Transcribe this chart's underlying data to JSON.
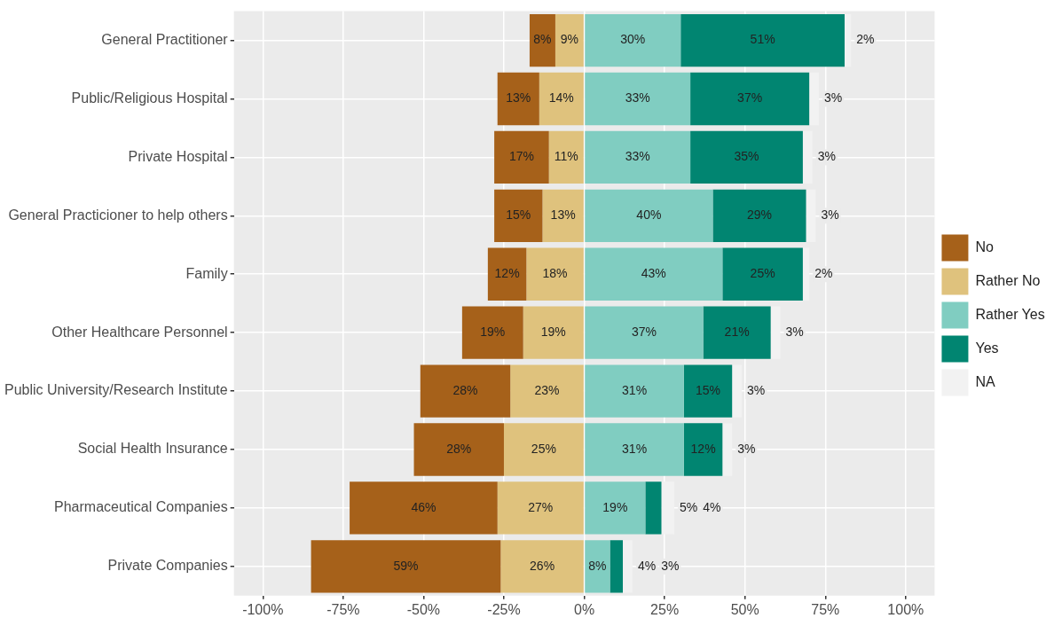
{
  "chart_data": {
    "type": "bar",
    "orientation": "horizontal",
    "categories": [
      "General Practitioner",
      "Public/Religious Hospital",
      "Private Hospital",
      "General Practicioner to help others",
      "Family",
      "Other Healthcare Personnel",
      "Public University/Research Institute",
      "Social Health Insurance",
      "Pharmaceutical Companies",
      "Private Companies"
    ],
    "series": [
      {
        "name": "No",
        "color": "#a6611a",
        "values": [
          8,
          13,
          17,
          15,
          12,
          19,
          28,
          28,
          46,
          59
        ],
        "base": [
          -17,
          -27,
          -28,
          -28,
          -30,
          -38,
          -51,
          -53,
          -73,
          -85
        ],
        "value_labels": [
          "8%",
          "13%",
          "17%",
          "15%",
          "12%",
          "19%",
          "28%",
          "28%",
          "46%",
          "59%"
        ]
      },
      {
        "name": "Rather No",
        "color": "#dfc27d",
        "values": [
          9,
          14,
          11,
          13,
          18,
          19,
          23,
          25,
          27,
          26
        ],
        "base": [
          -9,
          -14,
          -11,
          -13,
          -18,
          -19,
          -23,
          -25,
          -27,
          -26
        ],
        "value_labels": [
          "9%",
          "14%",
          "11%",
          "13%",
          "18%",
          "19%",
          "23%",
          "25%",
          "27%",
          "26%"
        ]
      },
      {
        "name": "Rather Yes",
        "color": "#80cdc1",
        "values": [
          30,
          33,
          33,
          40,
          43,
          37,
          31,
          31,
          19,
          8
        ],
        "base": [
          0,
          0,
          0,
          0,
          0,
          0,
          0,
          0,
          0,
          0
        ],
        "value_labels": [
          "30%",
          "33%",
          "33%",
          "40%",
          "43%",
          "37%",
          "31%",
          "31%",
          "19%",
          "8%"
        ]
      },
      {
        "name": "Yes",
        "color": "#018571",
        "values": [
          51,
          37,
          35,
          29,
          25,
          21,
          15,
          12,
          5,
          4
        ],
        "base": [
          30,
          33,
          33,
          40,
          43,
          37,
          31,
          31,
          19,
          8
        ],
        "value_labels": [
          "51%",
          "37%",
          "35%",
          "29%",
          "25%",
          "21%",
          "15%",
          "12%",
          "5%",
          "4%"
        ]
      },
      {
        "name": "NA",
        "color": "#f2f2f2",
        "values": [
          2,
          3,
          3,
          3,
          2,
          3,
          3,
          3,
          4,
          3
        ],
        "base": [
          81,
          70,
          68,
          69,
          68,
          58,
          46,
          43,
          24,
          12
        ],
        "value_labels": [
          "2%",
          "3%",
          "3%",
          "3%",
          "2%",
          "3%",
          "3%",
          "3%",
          "4%",
          "3%"
        ]
      }
    ],
    "xlim": [
      -109,
      109
    ],
    "xticks": [
      {
        "value": -100,
        "label": "-100%"
      },
      {
        "value": -75,
        "label": "-75%"
      },
      {
        "value": -50,
        "label": "-50%"
      },
      {
        "value": -25,
        "label": "-25%"
      },
      {
        "value": 0,
        "label": "0%"
      },
      {
        "value": 25,
        "label": "25%"
      },
      {
        "value": 50,
        "label": "50%"
      },
      {
        "value": 75,
        "label": "75%"
      },
      {
        "value": 100,
        "label": "100%"
      }
    ],
    "grid": true,
    "legend": "right"
  }
}
